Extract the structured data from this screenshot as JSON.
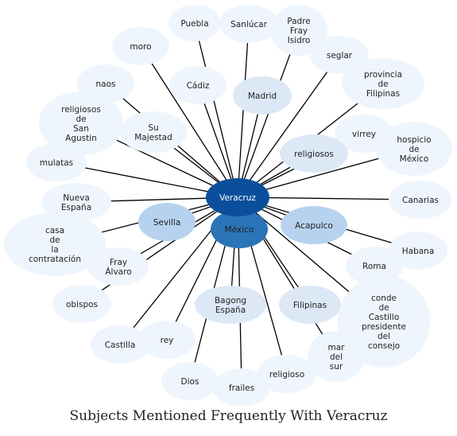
{
  "title": "Subjects Mentioned Frequently With Veracruz",
  "colors": {
    "center": "#0b4f9c",
    "strong": "#2a74b8",
    "medium": "#b7d2ee",
    "light": "#dce8f6",
    "faint": "#eff5fc",
    "edge": "#000000"
  },
  "center": {
    "label": "Veracruz",
    "tone": "center"
  },
  "nodes": [
    {
      "id": "puebla",
      "label": "Puebla",
      "tone": "faint"
    },
    {
      "id": "sanlucar",
      "label": "Sanlúcar",
      "tone": "faint"
    },
    {
      "id": "padre-fray-isidro",
      "label": "Padre\nFray\nIsidro",
      "tone": "faint"
    },
    {
      "id": "moro",
      "label": "moro",
      "tone": "faint"
    },
    {
      "id": "seglar",
      "label": "seglar",
      "tone": "faint"
    },
    {
      "id": "naos",
      "label": "naos",
      "tone": "faint"
    },
    {
      "id": "cadiz",
      "label": "Cádiz",
      "tone": "faint"
    },
    {
      "id": "madrid",
      "label": "Madrid",
      "tone": "light"
    },
    {
      "id": "provincia-de-filipinas",
      "label": "provincia\nde\nFilipinas",
      "tone": "faint"
    },
    {
      "id": "religiosos-de-san-agustin",
      "label": "religiosos\nde\nSan\nAgustin",
      "tone": "faint"
    },
    {
      "id": "su-majestad",
      "label": "Su\nMajestad",
      "tone": "faint"
    },
    {
      "id": "virrey",
      "label": "virrey",
      "tone": "faint"
    },
    {
      "id": "religiosos",
      "label": "religiosos",
      "tone": "light"
    },
    {
      "id": "hospicio-de-mexico",
      "label": "hospicio\nde\nMéxico",
      "tone": "faint"
    },
    {
      "id": "mulatas",
      "label": "mulatas",
      "tone": "faint"
    },
    {
      "id": "nueva-espana",
      "label": "Nueva\nEspaña",
      "tone": "faint"
    },
    {
      "id": "canarias",
      "label": "Canarias",
      "tone": "faint"
    },
    {
      "id": "sevilla",
      "label": "Sevilla",
      "tone": "medium"
    },
    {
      "id": "mexico",
      "label": "México",
      "tone": "strong"
    },
    {
      "id": "acapulco",
      "label": "Acapulco",
      "tone": "medium"
    },
    {
      "id": "casa-de-la-contratacion",
      "label": "casa\nde\nla\ncontratación",
      "tone": "faint"
    },
    {
      "id": "habana",
      "label": "Habana",
      "tone": "faint"
    },
    {
      "id": "fray-alvaro",
      "label": "Fray\nÁlvaro",
      "tone": "faint"
    },
    {
      "id": "roma",
      "label": "Roma",
      "tone": "faint"
    },
    {
      "id": "obispos",
      "label": "obispos",
      "tone": "faint"
    },
    {
      "id": "bagong-espana",
      "label": "Bagong\nEspaña",
      "tone": "light"
    },
    {
      "id": "filipinas",
      "label": "Filipinas",
      "tone": "light"
    },
    {
      "id": "conde-de-castillo",
      "label": "conde\nde\nCastillo\npresidente\ndel\nconsejo",
      "tone": "faint"
    },
    {
      "id": "castilla",
      "label": "Castilla",
      "tone": "faint"
    },
    {
      "id": "rey",
      "label": "rey",
      "tone": "faint"
    },
    {
      "id": "mar-del-sur",
      "label": "mar\ndel\nsur",
      "tone": "faint"
    },
    {
      "id": "dios",
      "label": "Dios",
      "tone": "faint"
    },
    {
      "id": "religioso",
      "label": "religioso",
      "tone": "faint"
    },
    {
      "id": "frailes",
      "label": "frailes",
      "tone": "faint"
    }
  ]
}
